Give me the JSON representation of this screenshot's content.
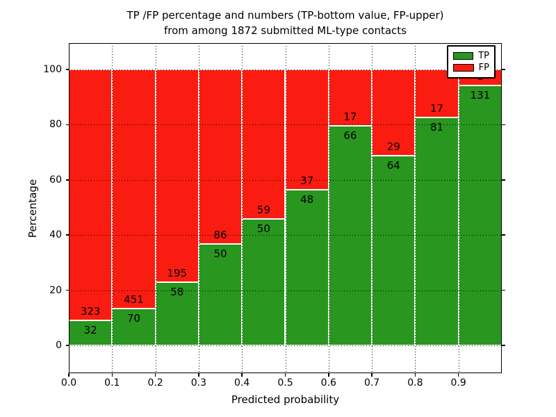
{
  "chart_data": {
    "type": "bar",
    "stacked": true,
    "orientation": "vertical",
    "title": "TP /FP percentage and numbers (TP-bottom value, FP-upper)\nfrom among 1872 submitted ML-type contacts",
    "xlabel": "Predicted probability",
    "ylabel": "Percentage",
    "total_contacts_in_title": 1872,
    "xlim": [
      0.0,
      1.0
    ],
    "ylim": [
      -10,
      110
    ],
    "x_tick_labels": [
      "0.0",
      "0.1",
      "0.2",
      "0.3",
      "0.4",
      "0.5",
      "0.6",
      "0.7",
      "0.8",
      "0.9"
    ],
    "y_tick_values": [
      0,
      20,
      40,
      60,
      80,
      100
    ],
    "bin_edges": [
      0.0,
      0.1,
      0.2,
      0.3,
      0.4,
      0.5,
      0.6,
      0.7,
      0.8,
      0.9,
      1.0
    ],
    "series": [
      {
        "name": "TP",
        "color": "#28961f",
        "counts": [
          32,
          70,
          58,
          50,
          50,
          48,
          66,
          64,
          81,
          131
        ]
      },
      {
        "name": "FP",
        "color": "#fb1c11",
        "counts": [
          323,
          451,
          195,
          86,
          59,
          37,
          17,
          29,
          17,
          8
        ]
      }
    ],
    "tp_percent_of_bin": [
      9.0,
      13.4,
      22.9,
      36.8,
      45.9,
      56.5,
      79.5,
      68.8,
      82.7,
      94.2
    ],
    "bars_sum_to_percent": 100,
    "legend": {
      "position": "upper right",
      "entries": [
        "TP",
        "FP"
      ]
    },
    "grid": {
      "style": "dotted",
      "color": "#000000"
    },
    "axis_color": "#000000",
    "background_color": "#ffffff"
  }
}
